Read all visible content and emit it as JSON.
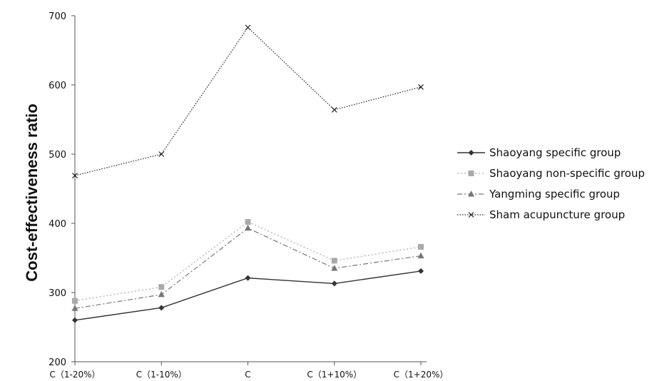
{
  "chart_data": {
    "type": "line",
    "title": "",
    "xlabel": "",
    "ylabel": "Cost-effectiveness ratio",
    "categories": [
      "C（1-20%）",
      "C（1-10%）",
      "C",
      "C（1+10%）",
      "C（1+20%）"
    ],
    "y_ticks": [
      "200",
      "300",
      "400",
      "500",
      "600",
      "700"
    ],
    "ylim": [
      200,
      700
    ],
    "grid": false,
    "legend_position": "right",
    "series": [
      {
        "name": "Shaoyang specific group",
        "values": [
          260,
          278,
          321,
          313,
          331
        ],
        "color": "#333333",
        "marker": "diamond",
        "dash": "solid"
      },
      {
        "name": "Shaoyang non-specific group",
        "values": [
          288,
          308,
          402,
          346,
          366
        ],
        "color": "#aaaaaa",
        "marker": "square",
        "dash": "dotted"
      },
      {
        "name": "Yangming specific group",
        "values": [
          277,
          297,
          393,
          335,
          353
        ],
        "color": "#777777",
        "marker": "triangle",
        "dash": "dashdot"
      },
      {
        "name": "Sham  acupuncture group",
        "values": [
          469,
          500,
          683,
          564,
          597
        ],
        "color": "#222222",
        "marker": "x",
        "dash": "finedot"
      }
    ]
  }
}
